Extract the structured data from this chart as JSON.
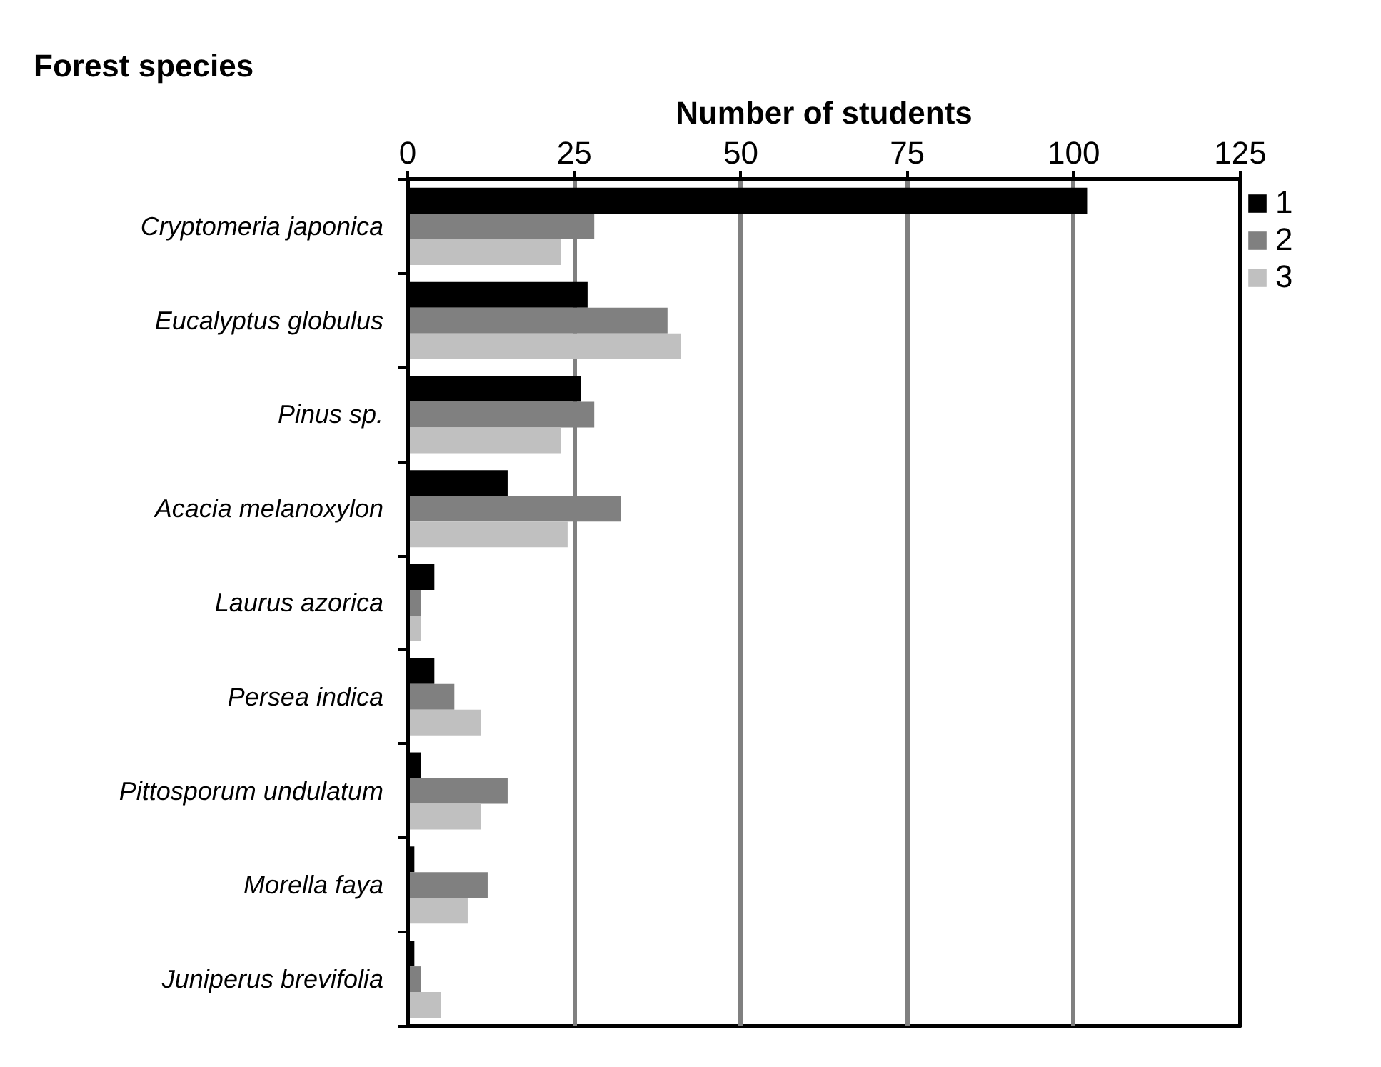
{
  "chart_data": {
    "type": "bar",
    "orientation": "horizontal",
    "xlabel": "Number of students",
    "ylabel": "Forest species",
    "categories": [
      "Cryptomeria japonica",
      "Eucalyptus globulus",
      "Pinus sp.",
      "Acacia melanoxylon",
      "Laurus azorica",
      "Persea indica",
      "Pittosporum undulatum",
      "Morella faya",
      "Juniperus brevifolia"
    ],
    "series": [
      {
        "name": "1",
        "color": "#000000",
        "values": [
          102,
          27,
          26,
          15,
          4,
          4,
          2,
          1,
          1
        ]
      },
      {
        "name": "2",
        "color": "#808080",
        "values": [
          28,
          39,
          28,
          32,
          2,
          7,
          15,
          12,
          2
        ]
      },
      {
        "name": "3",
        "color": "#c0c0c0",
        "values": [
          23,
          41,
          23,
          24,
          2,
          11,
          11,
          9,
          5
        ]
      }
    ],
    "xlim": [
      0,
      125
    ],
    "xticks": [
      0,
      25,
      50,
      75,
      100,
      125
    ],
    "grid": "x",
    "legend": "top right"
  }
}
